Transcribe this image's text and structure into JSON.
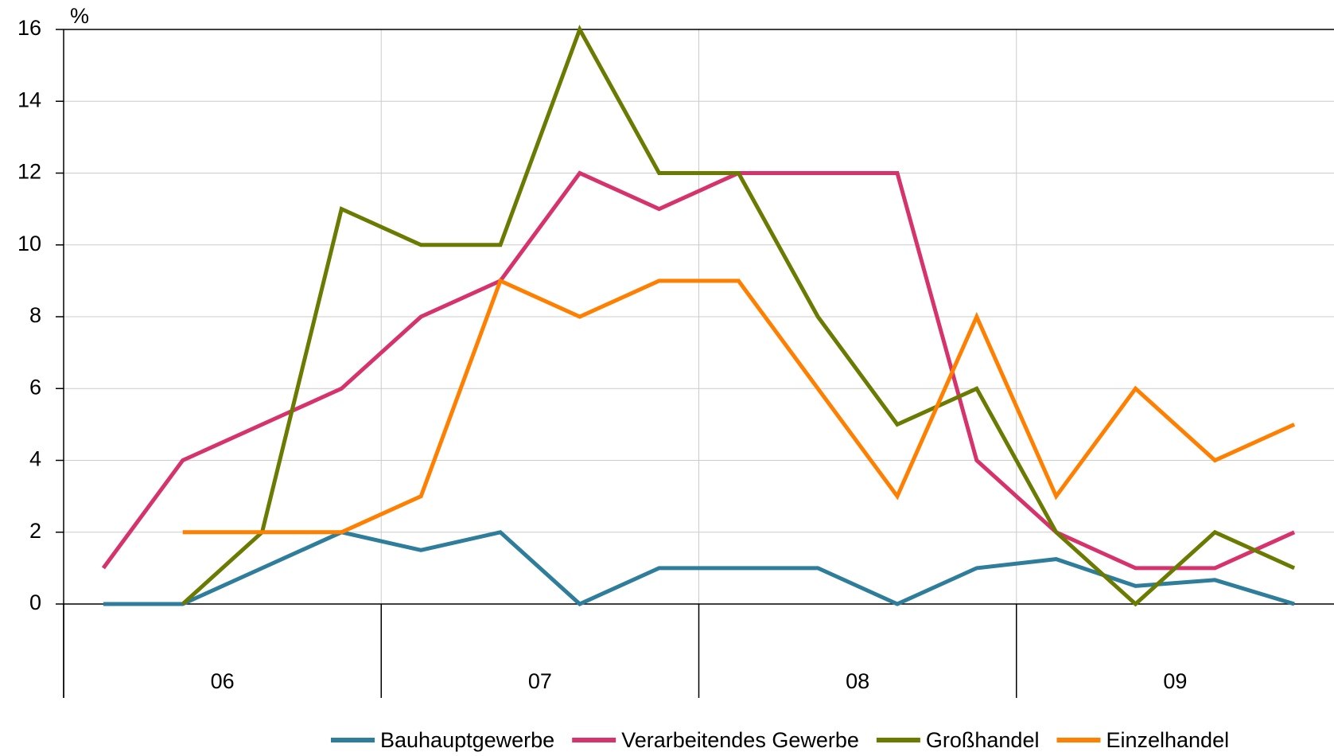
{
  "chart_data": {
    "type": "line",
    "y_unit": "%",
    "groups": [
      "06",
      "07",
      "08",
      "09"
    ],
    "categories": [
      null,
      null,
      null,
      null,
      null,
      null,
      null,
      null,
      null,
      null,
      null,
      null,
      null,
      null,
      null,
      null
    ],
    "series": [
      {
        "name": "Bauhauptgewerbe",
        "color": "#2e7d9a",
        "values": [
          0,
          0,
          1,
          2,
          1.5,
          2,
          0,
          1,
          1,
          1,
          0,
          1,
          1.25,
          0.5,
          0.67,
          0
        ]
      },
      {
        "name": "Verarbeitendes Gewerbe",
        "color": "#d6336c",
        "values": [
          1,
          4,
          5,
          6,
          8,
          9,
          12,
          11,
          12,
          12,
          12,
          4,
          2,
          1,
          1,
          2
        ]
      },
      {
        "name": "Großhandel",
        "color": "#6b7a00",
        "values": [
          null,
          0,
          2,
          11,
          10,
          10,
          16,
          12,
          12,
          8,
          5,
          6,
          2,
          0,
          2,
          1
        ]
      },
      {
        "name": "Einzelhandel",
        "color": "#ff7f00",
        "values": [
          null,
          2,
          2,
          2,
          3,
          9,
          8,
          9,
          9,
          6,
          3,
          8,
          3,
          6,
          4,
          5
        ]
      }
    ],
    "ylim": [
      0,
      16
    ],
    "yticks": [
      0,
      2,
      4,
      6,
      8,
      10,
      12,
      14,
      16
    ],
    "grid": true
  }
}
